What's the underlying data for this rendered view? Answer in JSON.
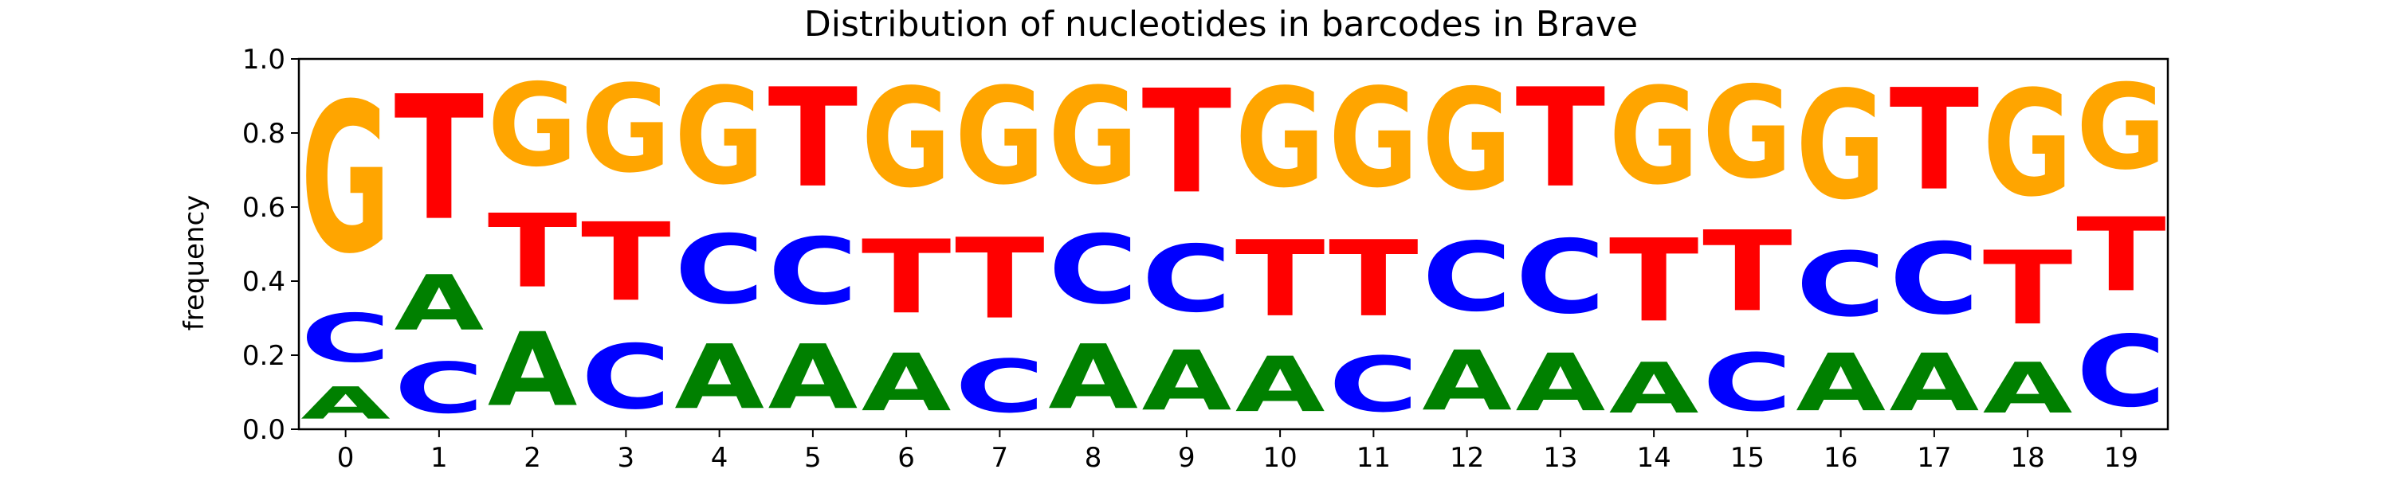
{
  "chart_data": {
    "type": "sequence-logo",
    "title": "Distribution of nucleotides in barcodes in Brave",
    "xlabel": "",
    "ylabel": "frequency",
    "ylim": [
      0,
      1
    ],
    "yticks": [
      0.0,
      0.2,
      0.4,
      0.6,
      0.8,
      1.0
    ],
    "ytick_labels": [
      "0.0",
      "0.2",
      "0.4",
      "0.6",
      "0.8",
      "1.0"
    ],
    "x": [
      0,
      1,
      2,
      3,
      4,
      5,
      6,
      7,
      8,
      9,
      10,
      11,
      12,
      13,
      14,
      15,
      16,
      17,
      18,
      19
    ],
    "x_labels": [
      "0",
      "1",
      "2",
      "3",
      "4",
      "5",
      "6",
      "7",
      "8",
      "9",
      "10",
      "11",
      "12",
      "13",
      "14",
      "15",
      "16",
      "17",
      "18",
      "19"
    ],
    "colors": {
      "A": "#008000",
      "C": "#0000ff",
      "G": "#ffa500",
      "T": "#ff0000"
    },
    "positions": [
      {
        "position": 0,
        "stack": [
          {
            "base": "A",
            "freq": 0.14
          },
          {
            "base": "C",
            "freq": 0.21
          },
          {
            "base": "G",
            "freq": 0.65
          }
        ]
      },
      {
        "position": 1,
        "stack": [
          {
            "base": "C",
            "freq": 0.22
          },
          {
            "base": "A",
            "freq": 0.24
          },
          {
            "base": "T",
            "freq": 0.54
          }
        ]
      },
      {
        "position": 2,
        "stack": [
          {
            "base": "A",
            "freq": 0.32
          },
          {
            "base": "T",
            "freq": 0.32
          },
          {
            "base": "G",
            "freq": 0.36
          }
        ]
      },
      {
        "position": 3,
        "stack": [
          {
            "base": "C",
            "freq": 0.28
          },
          {
            "base": "T",
            "freq": 0.34
          },
          {
            "base": "G",
            "freq": 0.38
          }
        ]
      },
      {
        "position": 4,
        "stack": [
          {
            "base": "A",
            "freq": 0.28
          },
          {
            "base": "C",
            "freq": 0.3
          },
          {
            "base": "G",
            "freq": 0.42
          }
        ]
      },
      {
        "position": 5,
        "stack": [
          {
            "base": "A",
            "freq": 0.28
          },
          {
            "base": "C",
            "freq": 0.29
          },
          {
            "base": "T",
            "freq": 0.43
          }
        ]
      },
      {
        "position": 6,
        "stack": [
          {
            "base": "A",
            "freq": 0.25
          },
          {
            "base": "T",
            "freq": 0.32
          },
          {
            "base": "G",
            "freq": 0.43
          }
        ]
      },
      {
        "position": 7,
        "stack": [
          {
            "base": "C",
            "freq": 0.23
          },
          {
            "base": "T",
            "freq": 0.35
          },
          {
            "base": "G",
            "freq": 0.42
          }
        ]
      },
      {
        "position": 8,
        "stack": [
          {
            "base": "A",
            "freq": 0.28
          },
          {
            "base": "C",
            "freq": 0.3
          },
          {
            "base": "G",
            "freq": 0.42
          }
        ]
      },
      {
        "position": 9,
        "stack": [
          {
            "base": "A",
            "freq": 0.26
          },
          {
            "base": "C",
            "freq": 0.29
          },
          {
            "base": "T",
            "freq": 0.45
          }
        ]
      },
      {
        "position": 10,
        "stack": [
          {
            "base": "A",
            "freq": 0.24
          },
          {
            "base": "T",
            "freq": 0.33
          },
          {
            "base": "G",
            "freq": 0.43
          }
        ]
      },
      {
        "position": 11,
        "stack": [
          {
            "base": "C",
            "freq": 0.24
          },
          {
            "base": "T",
            "freq": 0.33
          },
          {
            "base": "G",
            "freq": 0.43
          }
        ]
      },
      {
        "position": 12,
        "stack": [
          {
            "base": "A",
            "freq": 0.26
          },
          {
            "base": "C",
            "freq": 0.3
          },
          {
            "base": "G",
            "freq": 0.44
          }
        ]
      },
      {
        "position": 13,
        "stack": [
          {
            "base": "A",
            "freq": 0.25
          },
          {
            "base": "C",
            "freq": 0.32
          },
          {
            "base": "T",
            "freq": 0.43
          }
        ]
      },
      {
        "position": 14,
        "stack": [
          {
            "base": "A",
            "freq": 0.22
          },
          {
            "base": "T",
            "freq": 0.36
          },
          {
            "base": "G",
            "freq": 0.42
          }
        ]
      },
      {
        "position": 15,
        "stack": [
          {
            "base": "C",
            "freq": 0.25
          },
          {
            "base": "T",
            "freq": 0.35
          },
          {
            "base": "G",
            "freq": 0.4
          }
        ]
      },
      {
        "position": 16,
        "stack": [
          {
            "base": "A",
            "freq": 0.25
          },
          {
            "base": "C",
            "freq": 0.28
          },
          {
            "base": "G",
            "freq": 0.47
          }
        ]
      },
      {
        "position": 17,
        "stack": [
          {
            "base": "A",
            "freq": 0.25
          },
          {
            "base": "C",
            "freq": 0.31
          },
          {
            "base": "T",
            "freq": 0.44
          }
        ]
      },
      {
        "position": 18,
        "stack": [
          {
            "base": "A",
            "freq": 0.22
          },
          {
            "base": "T",
            "freq": 0.32
          },
          {
            "base": "G",
            "freq": 0.46
          }
        ]
      },
      {
        "position": 19,
        "stack": [
          {
            "base": "C",
            "freq": 0.31
          },
          {
            "base": "T",
            "freq": 0.32
          },
          {
            "base": "G",
            "freq": 0.37
          }
        ]
      }
    ],
    "grid": false,
    "legend": "none"
  }
}
